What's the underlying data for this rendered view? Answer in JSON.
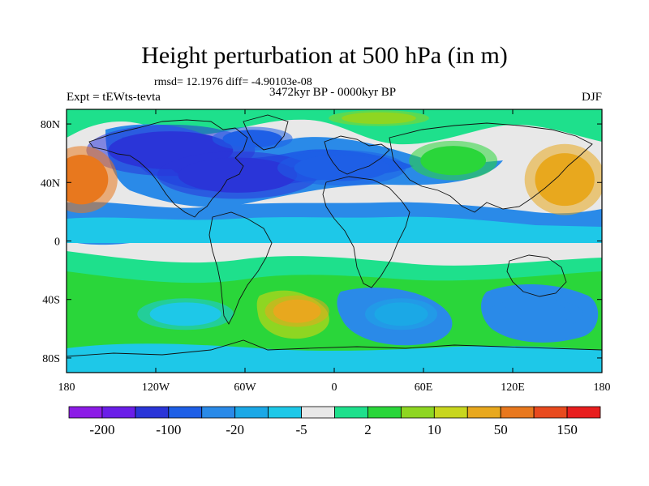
{
  "chart_data": {
    "type": "heatmap",
    "title": "Height perturbation at 500 hPa (in m)",
    "stats_line": "rmsd= 12.1976 diff= -4.90103e-08",
    "left_label": "Expt = tEWts-tevta",
    "center_label": "3472kyr BP - 0000kyr BP",
    "right_label": "DJF",
    "x_ticks": [
      "180",
      "120W",
      "60W",
      "0",
      "60E",
      "120E",
      "180"
    ],
    "y_ticks": [
      "80N",
      "40N",
      "0",
      "40S",
      "80S"
    ],
    "x_tick_values": [
      -180,
      -120,
      -60,
      0,
      60,
      120,
      180
    ],
    "y_tick_values": [
      80,
      40,
      0,
      -40,
      -80
    ],
    "xlim": [
      -180,
      180
    ],
    "ylim": [
      -90,
      90
    ],
    "colorbar_labels": [
      "-200",
      "-100",
      "-20",
      "-5",
      "2",
      "10",
      "50",
      "150"
    ],
    "colorbar_colors": [
      "#8c1ce6",
      "#6a1ee8",
      "#2a35d8",
      "#1e5fe6",
      "#2a8ae8",
      "#1ba8e6",
      "#1ec8e8",
      "#e8e8e8",
      "#1ee08c",
      "#2ad63a",
      "#8ed622",
      "#c8d61e",
      "#e8a81e",
      "#e8781e",
      "#e84a1e",
      "#e81e1e"
    ],
    "field_regions": [
      {
        "name": "arctic-north-america",
        "lon": -110,
        "lat": 62,
        "rx": 42,
        "ry": 13,
        "level": 2
      },
      {
        "name": "north-atlantic-trough",
        "lon": -65,
        "lat": 45,
        "rx": 40,
        "ry": 12,
        "level": 2
      },
      {
        "name": "greenland-trough",
        "lon": -55,
        "lat": 70,
        "rx": 20,
        "ry": 6,
        "level": 3
      },
      {
        "name": "europe-trough",
        "lon": 5,
        "lat": 50,
        "rx": 32,
        "ry": 9,
        "level": 3
      },
      {
        "name": "north-pacific-ridge",
        "lon": -170,
        "lat": 42,
        "rx": 18,
        "ry": 17,
        "level": 13
      },
      {
        "name": "west-pacific-ridge",
        "lon": 155,
        "lat": 42,
        "rx": 20,
        "ry": 18,
        "level": 12
      },
      {
        "name": "arctic-ridge",
        "lon": 30,
        "lat": 84,
        "rx": 25,
        "ry": 4,
        "level": 10
      },
      {
        "name": "siberia-ridge",
        "lon": 80,
        "lat": 55,
        "rx": 22,
        "ry": 10,
        "level": 9
      },
      {
        "name": "south-atlantic-high",
        "lon": -25,
        "lat": -48,
        "rx": 16,
        "ry": 8,
        "level": 12
      },
      {
        "name": "indian-ocean-low",
        "lon": 45,
        "lat": -50,
        "rx": 18,
        "ry": 8,
        "level": 5
      },
      {
        "name": "australia-low",
        "lon": 135,
        "lat": -50,
        "rx": 24,
        "ry": 8,
        "level": 4
      },
      {
        "name": "south-pacific-low",
        "lon": -100,
        "lat": -50,
        "rx": 24,
        "ry": 8,
        "level": 6
      }
    ]
  }
}
